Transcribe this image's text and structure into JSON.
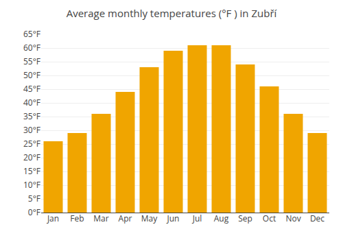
{
  "chart_data": {
    "type": "bar",
    "title": "Average monthly temperatures (°F ) in Zubří",
    "categories": [
      "Jan",
      "Feb",
      "Mar",
      "Apr",
      "May",
      "Jun",
      "Jul",
      "Aug",
      "Sep",
      "Oct",
      "Nov",
      "Dec"
    ],
    "values": [
      26,
      29,
      36,
      44,
      53,
      59,
      61,
      61,
      54,
      46,
      36,
      29
    ],
    "color": "#F0A500",
    "ylim": [
      0,
      65
    ],
    "yticks": [
      {
        "value": 0,
        "label": "0°F"
      },
      {
        "value": 5,
        "label": "5°F"
      },
      {
        "value": 10,
        "label": "10°F"
      },
      {
        "value": 15,
        "label": "15°F"
      },
      {
        "value": 20,
        "label": "20°F"
      },
      {
        "value": 25,
        "label": "25°F"
      },
      {
        "value": 30,
        "label": "30°F"
      },
      {
        "value": 35,
        "label": "35°F"
      },
      {
        "value": 40,
        "label": "40°F"
      },
      {
        "value": 45,
        "label": "45°F"
      },
      {
        "value": 50,
        "label": "50°F"
      },
      {
        "value": 55,
        "label": "55°F"
      },
      {
        "value": 60,
        "label": "60°F"
      },
      {
        "value": 65,
        "label": "65°F"
      }
    ],
    "grid": true
  }
}
